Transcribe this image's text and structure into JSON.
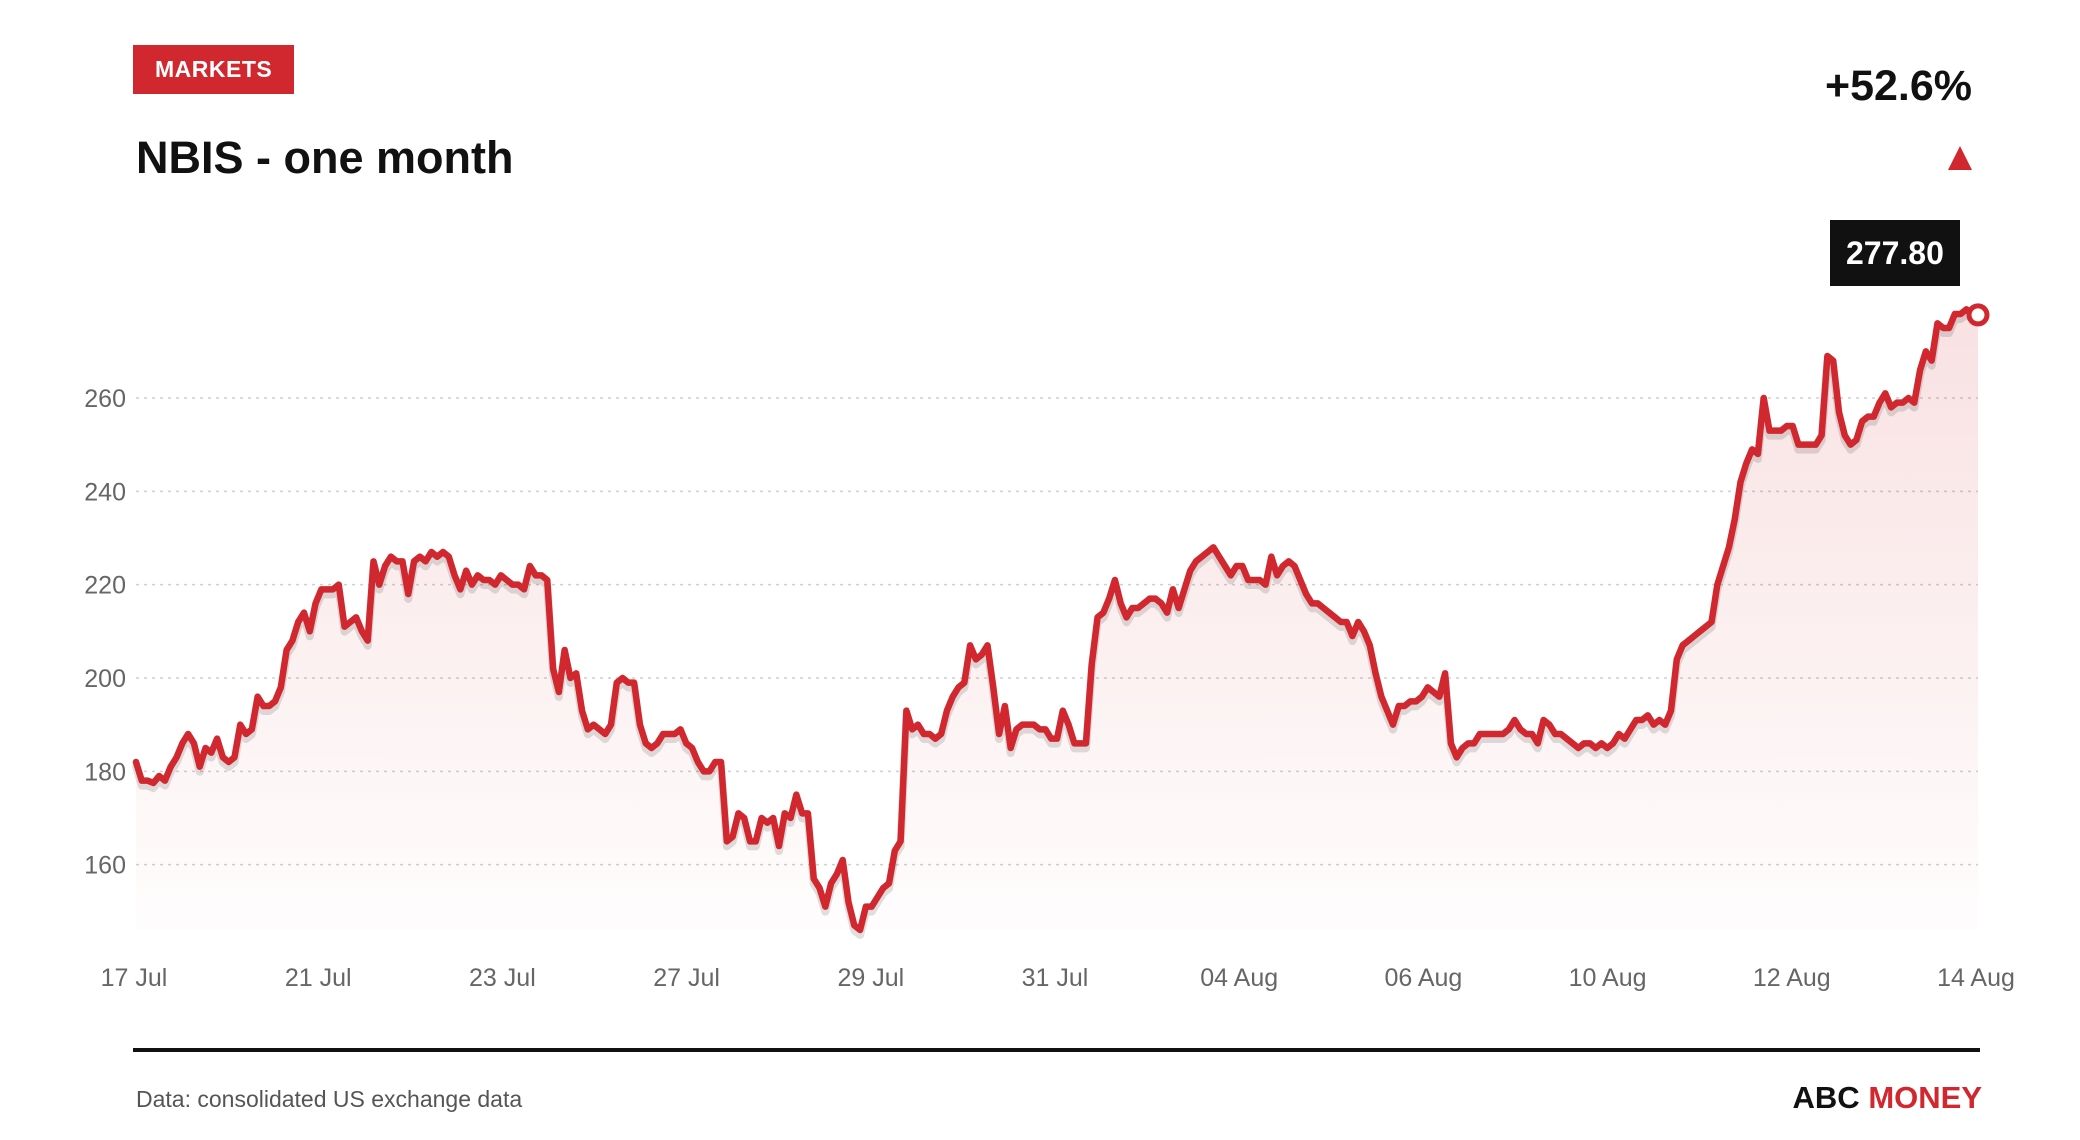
{
  "header": {
    "tag": "MARKETS",
    "title": "NBIS - one month",
    "change": "+52.6%",
    "last_price": "277.80"
  },
  "footer": {
    "source": "Data: consolidated US exchange data",
    "brand_1": "ABC",
    "brand_2": "MONEY"
  },
  "colors": {
    "line": "#d0282e",
    "accent": "#d0282e",
    "text": "#111111"
  },
  "chart_data": {
    "type": "area",
    "title": "NBIS - one month",
    "xlabel": "",
    "ylabel": "",
    "x_ticks": [
      "17 Jul",
      "21 Jul",
      "23 Jul",
      "27 Jul",
      "29 Jul",
      "31 Jul",
      "04 Aug",
      "06 Aug",
      "10 Aug",
      "12 Aug",
      "14 Aug"
    ],
    "y_ticks": [
      160,
      180,
      200,
      220,
      240,
      260
    ],
    "ylim": [
      146,
      281
    ],
    "grid": true,
    "last_value": 277.8,
    "change_pct": 52.6,
    "values": [
      182,
      178,
      178,
      177.5,
      179,
      178,
      181,
      183,
      186,
      188,
      186,
      181,
      185,
      184,
      187,
      183,
      182,
      183,
      190,
      188,
      189,
      196,
      194,
      194,
      195,
      198,
      206,
      208,
      212,
      214,
      210,
      216,
      219,
      219,
      219,
      220,
      211,
      212,
      213,
      210,
      208,
      225,
      220,
      224,
      226,
      225,
      225,
      218,
      225,
      226,
      225,
      227,
      226,
      227,
      226,
      222,
      219,
      223,
      220,
      222,
      221,
      221,
      220,
      222,
      221,
      220,
      220,
      219,
      224,
      222,
      222,
      221,
      202,
      197,
      206,
      200,
      201,
      193,
      189,
      190,
      189,
      188,
      190,
      199,
      200,
      199,
      199,
      190,
      186,
      185,
      186,
      188,
      188,
      188,
      189,
      186,
      185,
      182,
      180,
      180,
      182,
      182,
      165,
      166,
      171,
      170,
      165,
      165,
      170,
      169,
      170,
      164,
      171,
      170,
      175,
      171,
      171,
      157,
      155,
      151,
      156,
      158,
      161,
      152,
      147,
      146,
      151,
      151,
      153,
      155,
      156,
      163,
      165,
      193,
      189,
      190,
      188,
      188,
      187,
      188,
      193,
      196,
      198,
      199,
      207,
      204,
      205,
      207,
      198,
      188,
      194,
      185,
      189,
      190,
      190,
      190,
      189,
      189,
      187,
      187,
      193,
      190,
      186,
      186,
      186,
      203,
      213,
      214,
      217,
      221,
      216,
      213,
      215,
      215,
      216,
      217,
      217,
      216,
      214,
      219,
      215,
      219,
      223,
      225,
      226,
      227,
      228,
      226,
      224,
      222,
      224,
      224,
      221,
      221,
      221,
      220,
      226,
      222,
      224,
      225,
      224,
      221,
      218,
      216,
      216,
      215,
      214,
      213,
      212,
      212,
      209,
      212,
      210,
      207,
      201,
      196,
      193,
      190,
      194,
      194,
      195,
      195,
      196,
      198,
      197,
      196,
      201,
      186,
      183,
      185,
      186,
      186,
      188,
      188,
      188,
      188,
      188,
      189,
      191,
      189,
      188,
      188,
      186,
      191,
      190,
      188,
      188,
      187,
      186,
      185,
      186,
      186,
      185,
      186,
      185,
      186,
      188,
      187,
      189,
      191,
      191,
      192,
      190,
      191,
      190,
      193,
      204,
      207,
      208,
      209,
      210,
      211,
      212,
      220,
      224,
      228,
      234,
      242,
      246,
      249,
      248,
      260,
      253,
      253,
      253,
      254,
      254,
      250,
      250,
      250,
      250,
      252,
      269,
      268,
      257,
      252,
      250,
      251,
      255,
      256,
      256,
      259,
      261,
      258,
      259,
      259,
      260,
      259,
      266,
      270,
      268,
      276,
      275,
      275,
      278,
      278,
      279,
      278,
      277.8
    ]
  }
}
